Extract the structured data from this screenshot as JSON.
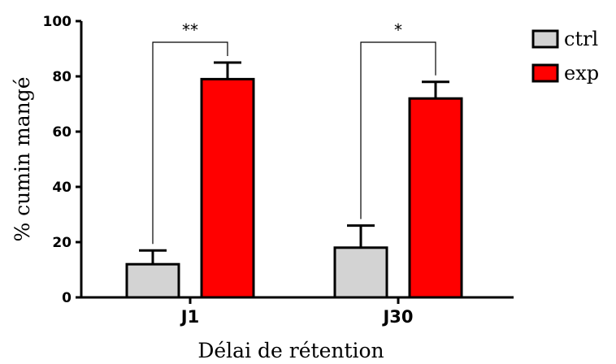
{
  "chart_data": {
    "type": "bar",
    "categories": [
      "J1",
      "J30"
    ],
    "series": [
      {
        "name": "ctrl",
        "values": [
          12,
          18
        ],
        "errors": [
          5,
          8
        ],
        "color": "#d3d3d3"
      },
      {
        "name": "exp",
        "values": [
          79,
          72
        ],
        "errors": [
          6,
          6
        ],
        "color": "#ff0000"
      }
    ],
    "xlabel": "Délai de rétention",
    "ylabel": "% cumin mangé",
    "ylim": [
      0,
      100
    ],
    "yticks": [
      0,
      20,
      40,
      60,
      80,
      100
    ],
    "grid": false,
    "legend_position": "top-right",
    "significance": [
      "**",
      "*"
    ]
  }
}
